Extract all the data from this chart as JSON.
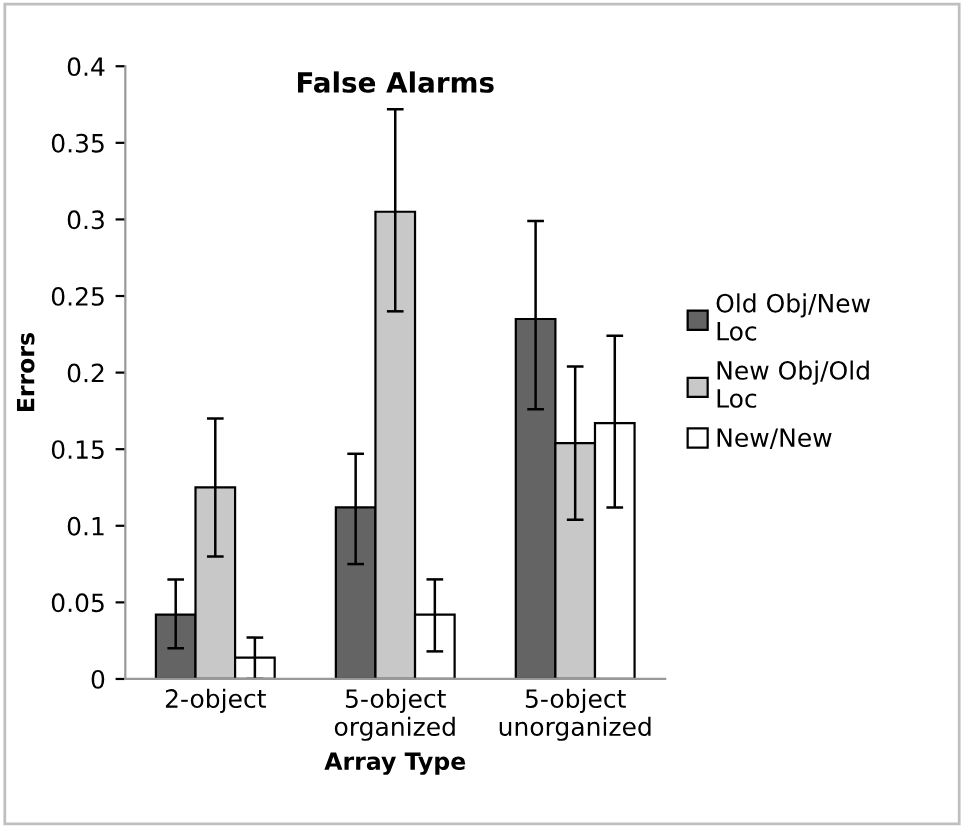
{
  "chart_data": {
    "type": "bar",
    "title": "False Alarms",
    "xlabel": "Array Type",
    "ylabel": "Errors",
    "categories": [
      "2-object",
      "5-object\norganized",
      "5-object\nunorganized"
    ],
    "series": [
      {
        "name": "Old Obj/New Loc",
        "color": "#646464",
        "values": [
          0.042,
          0.112,
          0.235
        ],
        "errors": [
          [
            0.02,
            0.065
          ],
          [
            0.075,
            0.147
          ],
          [
            0.176,
            0.299
          ]
        ]
      },
      {
        "name": "New Obj/Old Loc",
        "color": "#c8c8c8",
        "values": [
          0.125,
          0.305,
          0.154
        ],
        "errors": [
          [
            0.08,
            0.17
          ],
          [
            0.24,
            0.372
          ],
          [
            0.104,
            0.204
          ]
        ]
      },
      {
        "name": "New/New",
        "color": "#ffffff",
        "values": [
          0.014,
          0.042,
          0.167
        ],
        "errors": [
          [
            0.0,
            0.027
          ],
          [
            0.018,
            0.065
          ],
          [
            0.112,
            0.224
          ]
        ]
      }
    ],
    "ylim": [
      0,
      0.4
    ],
    "yticks": [
      0,
      0.05,
      0.1,
      0.15,
      0.2,
      0.25,
      0.3,
      0.35,
      0.4
    ],
    "grid": false,
    "legend": "right"
  }
}
